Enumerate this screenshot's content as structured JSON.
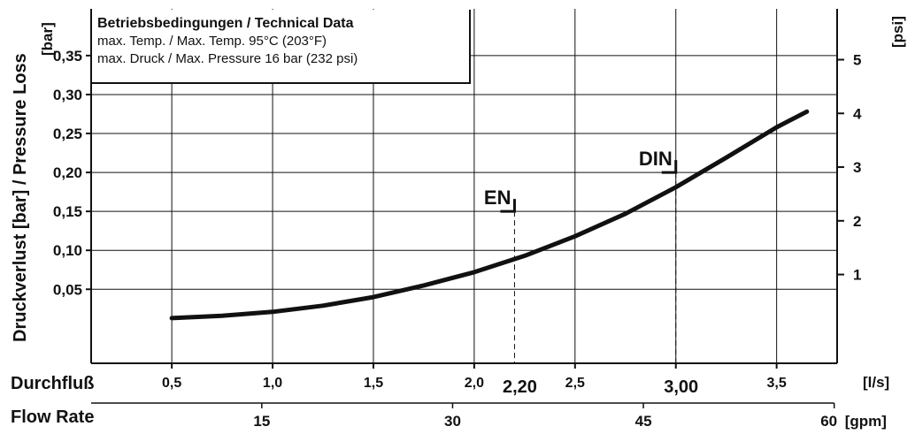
{
  "chart_data": {
    "type": "line",
    "info": {
      "title": "Betriebsbedingungen / Technical Data",
      "line1": "max. Temp. / Max. Temp. 95°C (203°F)",
      "line2": "max. Druck / Max. Pressure 16 bar (232 psi)"
    },
    "ylabel": "Druckverlust [bar] / Pressure Loss",
    "ylabel_unit": "[bar]",
    "y2label": "[psi]",
    "xlabel": "Durchfluß",
    "xlabel_unit": "[l/s]",
    "x2label": "Flow Rate",
    "x2label_unit": "[gpm]",
    "xlim": [
      0.1,
      3.8
    ],
    "ylim": [
      -0.045,
      0.41
    ],
    "yticks": [
      0.05,
      0.1,
      0.15,
      0.2,
      0.25,
      0.3,
      0.35
    ],
    "ytick_labels": [
      "0,05",
      "0,10",
      "0,15",
      "0,20",
      "0,25",
      "0,30",
      "0,35"
    ],
    "y2ticks": [
      1,
      2,
      3,
      4,
      5
    ],
    "psi_per_bar": 14.5038,
    "xticks": [
      0.5,
      1.0,
      1.5,
      2.0,
      2.5,
      3.0,
      3.5
    ],
    "xtick_labels": [
      "0,5",
      "1,0",
      "1,5",
      "2,0",
      "2,5",
      "",
      "3,5"
    ],
    "x2ticks": [
      15,
      30,
      45,
      60
    ],
    "gpm_per_ls": 15.85,
    "grid": true,
    "series": [
      {
        "x": [
          0.5,
          0.75,
          1.0,
          1.25,
          1.5,
          1.75,
          2.0,
          2.25,
          2.5,
          2.75,
          3.0,
          3.25,
          3.5,
          3.65
        ],
        "y": [
          0.013,
          0.016,
          0.021,
          0.029,
          0.04,
          0.055,
          0.072,
          0.093,
          0.118,
          0.147,
          0.181,
          0.219,
          0.258,
          0.278
        ]
      }
    ],
    "annotations": [
      {
        "label": "EN",
        "x": 2.2,
        "y": 0.15,
        "value_label": "2,20"
      },
      {
        "label": "DIN",
        "x": 3.0,
        "y": 0.2,
        "value_label": "3,00"
      }
    ]
  }
}
